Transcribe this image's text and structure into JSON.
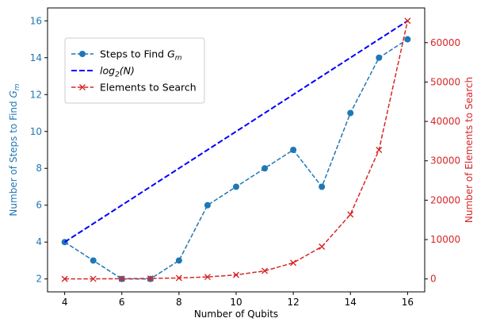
{
  "chart_data": {
    "type": "line",
    "x": [
      4,
      5,
      6,
      7,
      8,
      9,
      10,
      11,
      12,
      13,
      14,
      15,
      16
    ],
    "xlabel": "Number of Qubits",
    "xticks": [
      "4",
      "6",
      "8",
      "10",
      "12",
      "14",
      "16"
    ],
    "xlim": [
      3.4,
      16.6
    ],
    "left_axis": {
      "label_prefix": "Number of Steps to Find ",
      "label_var": "G",
      "label_sub": "m",
      "ylim": [
        1.3,
        16.7
      ],
      "ticks": [
        "2",
        "4",
        "6",
        "8",
        "10",
        "12",
        "14",
        "16"
      ],
      "color": "#1f77b4"
    },
    "right_axis": {
      "label": "Number of Elements to Search",
      "ylim": [
        -3277,
        68813
      ],
      "ticks": [
        "0",
        "10000",
        "20000",
        "30000",
        "40000",
        "50000",
        "60000"
      ],
      "color": "#d62728"
    },
    "series": [
      {
        "name": "Steps to Find",
        "name_var": "G",
        "name_sub": "m",
        "axis": "left",
        "style": "dashed",
        "marker": "circle",
        "color": "#1f77b4",
        "values": [
          4,
          3,
          2,
          2,
          3,
          6,
          7,
          8,
          9,
          7,
          11,
          14,
          15
        ]
      },
      {
        "name": "log",
        "name_sub": "2",
        "name_suffix": "(N)",
        "axis": "left",
        "style": "dashed",
        "marker": "none",
        "color": "#0000ff",
        "values": [
          4,
          5,
          6,
          7,
          8,
          9,
          10,
          11,
          12,
          13,
          14,
          15,
          16
        ]
      },
      {
        "name": "Elements to Search",
        "axis": "right",
        "style": "dashed",
        "marker": "x",
        "color": "#d62728",
        "values": [
          16,
          32,
          64,
          128,
          256,
          512,
          1024,
          2048,
          4096,
          8192,
          16384,
          32768,
          65536
        ]
      }
    ],
    "legend_position": "upper-left"
  }
}
